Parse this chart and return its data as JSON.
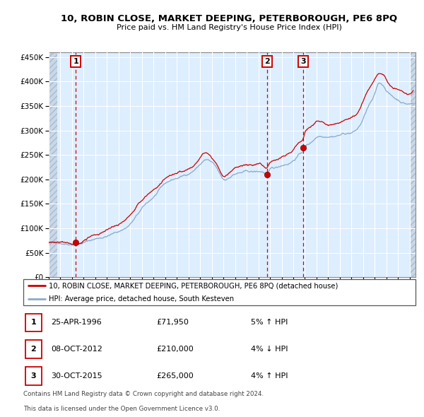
{
  "title": "10, ROBIN CLOSE, MARKET DEEPING, PETERBOROUGH, PE6 8PQ",
  "subtitle": "Price paid vs. HM Land Registry's House Price Index (HPI)",
  "legend_line1": "10, ROBIN CLOSE, MARKET DEEPING, PETERBOROUGH, PE6 8PQ (detached house)",
  "legend_line2": "HPI: Average price, detached house, South Kesteven",
  "table_rows": [
    {
      "num": "1",
      "date": "25-APR-1996",
      "price": "£71,950",
      "hpi": "5% ↑ HPI"
    },
    {
      "num": "2",
      "date": "08-OCT-2012",
      "price": "£210,000",
      "hpi": "4% ↓ HPI"
    },
    {
      "num": "3",
      "date": "30-OCT-2015",
      "price": "£265,000",
      "hpi": "4% ↑ HPI"
    }
  ],
  "footer_line1": "Contains HM Land Registry data © Crown copyright and database right 2024.",
  "footer_line2": "This data is licensed under the Open Government Licence v3.0.",
  "sale_points": [
    {
      "year": 1996.32,
      "price": 71950
    },
    {
      "year": 2012.77,
      "price": 210000
    },
    {
      "year": 2015.83,
      "price": 265000
    }
  ],
  "dashed_lines": [
    1996.32,
    2012.77,
    2015.83
  ],
  "label_numbers": [
    {
      "num": "1",
      "year": 1996.32
    },
    {
      "num": "2",
      "year": 2012.77
    },
    {
      "num": "3",
      "year": 2015.83
    }
  ],
  "ylim": [
    0,
    460000
  ],
  "xlim_start": 1994.0,
  "xlim_end": 2025.5,
  "yticks": [
    0,
    50000,
    100000,
    150000,
    200000,
    250000,
    300000,
    350000,
    400000,
    450000
  ],
  "ytick_labels": [
    "£0",
    "£50K",
    "£100K",
    "£150K",
    "£200K",
    "£250K",
    "£300K",
    "£350K",
    "£400K",
    "£450K"
  ],
  "xticks": [
    1994,
    1995,
    1996,
    1997,
    1998,
    1999,
    2000,
    2001,
    2002,
    2003,
    2004,
    2005,
    2006,
    2007,
    2008,
    2009,
    2010,
    2011,
    2012,
    2013,
    2014,
    2015,
    2016,
    2017,
    2018,
    2019,
    2020,
    2021,
    2022,
    2023,
    2024,
    2025
  ],
  "red_line_color": "#cc0000",
  "blue_line_color": "#88aacc",
  "bg_color": "#ddeeff",
  "hatch_bg_color": "#c8d8e8",
  "sale_dot_color": "#cc0000",
  "dashed_line_color": "#cc0000",
  "grid_color": "#ffffff",
  "label_box_color": "#cc0000",
  "anchor_years_blue": [
    1994.0,
    1995.0,
    1996.0,
    1996.3,
    1997.0,
    1998.0,
    1999.0,
    2000.0,
    2001.0,
    2002.0,
    2003.0,
    2004.0,
    2005.0,
    2006.0,
    2007.0,
    2007.5,
    2008.0,
    2008.5,
    2009.0,
    2009.5,
    2010.0,
    2010.5,
    2011.0,
    2011.5,
    2012.0,
    2012.5,
    2012.8,
    2013.0,
    2013.5,
    2014.0,
    2014.5,
    2015.0,
    2015.5,
    2015.8,
    2016.0,
    2016.5,
    2017.0,
    2017.5,
    2018.0,
    2018.5,
    2019.0,
    2019.5,
    2020.0,
    2020.5,
    2021.0,
    2021.5,
    2022.0,
    2022.3,
    2022.5,
    2023.0,
    2023.5,
    2024.0,
    2024.5,
    2025.0
  ],
  "anchor_vals_blue": [
    70000,
    71000,
    72000,
    73000,
    77000,
    84000,
    91000,
    100000,
    116000,
    145000,
    168000,
    192000,
    203000,
    213000,
    233000,
    242000,
    235000,
    218000,
    197000,
    202000,
    210000,
    212000,
    213000,
    212000,
    212000,
    210000,
    207000,
    213000,
    217000,
    223000,
    228000,
    236000,
    248000,
    255000,
    263000,
    272000,
    285000,
    288000,
    291000,
    293000,
    296000,
    299000,
    301000,
    308000,
    328000,
    355000,
    375000,
    395000,
    397000,
    385000,
    372000,
    365000,
    360000,
    358000
  ],
  "anchor_years_red": [
    1994.0,
    1995.0,
    1996.0,
    1996.32,
    1997.0,
    1998.0,
    1999.0,
    2000.0,
    2001.0,
    2002.0,
    2003.0,
    2004.0,
    2005.0,
    2006.0,
    2007.0,
    2007.5,
    2008.0,
    2008.5,
    2009.0,
    2009.5,
    2010.0,
    2010.5,
    2011.0,
    2011.5,
    2012.0,
    2012.5,
    2012.77,
    2013.0,
    2013.5,
    2014.0,
    2014.5,
    2015.0,
    2015.5,
    2015.83,
    2016.0,
    2016.5,
    2017.0,
    2017.5,
    2018.0,
    2018.5,
    2019.0,
    2019.5,
    2020.0,
    2020.5,
    2021.0,
    2021.5,
    2022.0,
    2022.3,
    2022.5,
    2023.0,
    2023.5,
    2024.0,
    2024.5,
    2025.0
  ],
  "anchor_vals_red": [
    71000,
    72000,
    73500,
    71950,
    80000,
    87000,
    95000,
    104000,
    121000,
    150000,
    173000,
    197000,
    208000,
    218000,
    245000,
    255000,
    242000,
    222000,
    200000,
    207000,
    215000,
    218000,
    218000,
    217000,
    220000,
    213000,
    210000,
    220000,
    225000,
    230000,
    235000,
    244000,
    258000,
    265000,
    278000,
    290000,
    300000,
    302000,
    298000,
    300000,
    305000,
    310000,
    312000,
    320000,
    345000,
    370000,
    393000,
    408000,
    410000,
    398000,
    380000,
    375000,
    368000,
    365000
  ]
}
